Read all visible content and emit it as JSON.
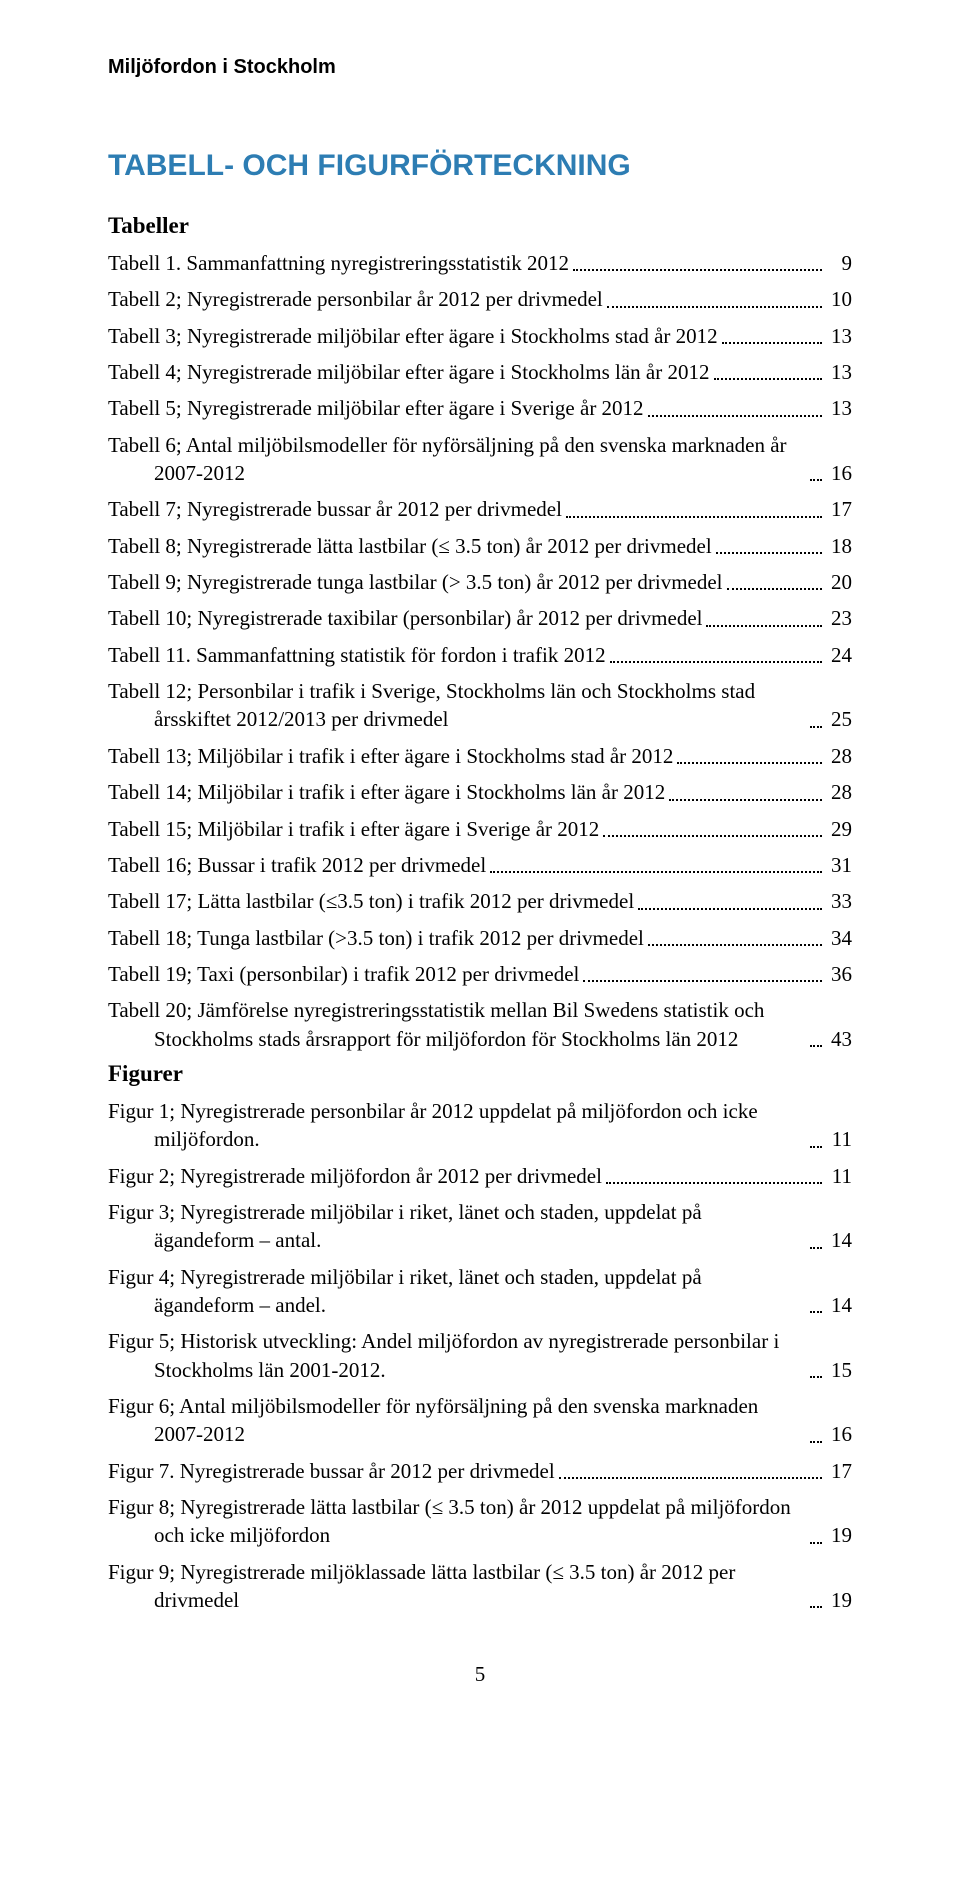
{
  "header": {
    "running_head": "Miljöfordon i Stockholm",
    "section_title": "TABELL- OCH FIGURFÖRTECKNING"
  },
  "tabeller": {
    "heading": "Tabeller",
    "rows": [
      {
        "text": "Tabell 1. Sammanfattning nyregistreringsstatistik 2012",
        "page": "9",
        "indent": false
      },
      {
        "text": "Tabell 2; Nyregistrerade personbilar år 2012 per drivmedel",
        "page": "10",
        "indent": false
      },
      {
        "text": "Tabell 3; Nyregistrerade miljöbilar efter ägare i Stockholms stad år 2012",
        "page": "13",
        "indent": false
      },
      {
        "text": "Tabell 4; Nyregistrerade miljöbilar efter ägare i Stockholms län år 2012",
        "page": "13",
        "indent": false
      },
      {
        "text": "Tabell 5; Nyregistrerade miljöbilar efter ägare i Sverige år 2012",
        "page": "13",
        "indent": false
      },
      {
        "text": "Tabell 6; Antal miljöbilsmodeller för nyförsäljning på den svenska marknaden år 2007-2012",
        "page": "16",
        "indent": true
      },
      {
        "text": "Tabell 7; Nyregistrerade bussar år 2012 per drivmedel",
        "page": "17",
        "indent": false
      },
      {
        "text": "Tabell 8; Nyregistrerade lätta lastbilar (≤ 3.5 ton) år 2012 per drivmedel",
        "page": "18",
        "indent": false
      },
      {
        "text": "Tabell 9; Nyregistrerade tunga lastbilar (> 3.5 ton) år 2012 per drivmedel",
        "page": "20",
        "indent": false
      },
      {
        "text": "Tabell 10; Nyregistrerade taxibilar (personbilar) år 2012 per drivmedel",
        "page": "23",
        "indent": false
      },
      {
        "text": "Tabell 11. Sammanfattning statistik för fordon i trafik 2012",
        "page": "24",
        "indent": false
      },
      {
        "text": "Tabell 12; Personbilar i trafik i Sverige, Stockholms län och Stockholms stad årsskiftet 2012/2013 per drivmedel",
        "page": "25",
        "indent": true
      },
      {
        "text": "Tabell 13; Miljöbilar i trafik i efter ägare i Stockholms stad år 2012",
        "page": "28",
        "indent": false
      },
      {
        "text": "Tabell 14; Miljöbilar i trafik i efter ägare i Stockholms län år 2012",
        "page": "28",
        "indent": false
      },
      {
        "text": "Tabell 15; Miljöbilar i trafik i efter ägare i Sverige år 2012",
        "page": "29",
        "indent": false
      },
      {
        "text": "Tabell 16; Bussar i trafik 2012 per drivmedel",
        "page": "31",
        "indent": false
      },
      {
        "text": "Tabell 17; Lätta lastbilar (≤3.5 ton) i trafik 2012 per drivmedel",
        "page": "33",
        "indent": false
      },
      {
        "text": "Tabell 18; Tunga lastbilar (>3.5 ton) i trafik 2012 per drivmedel",
        "page": "34",
        "indent": false
      },
      {
        "text": "Tabell 19; Taxi (personbilar) i trafik 2012 per drivmedel",
        "page": "36",
        "indent": false
      },
      {
        "text": "Tabell 20; Jämförelse nyregistreringsstatistik mellan Bil Swedens statistik och Stockholms stads årsrapport för miljöfordon för Stockholms län 2012",
        "page": "43",
        "indent": true
      }
    ]
  },
  "figurer": {
    "heading": "Figurer",
    "rows": [
      {
        "text": "Figur 1; Nyregistrerade personbilar år 2012 uppdelat på miljöfordon och icke miljöfordon.",
        "page": "11",
        "indent": true
      },
      {
        "text": "Figur 2; Nyregistrerade miljöfordon år 2012 per drivmedel",
        "page": "11",
        "indent": false
      },
      {
        "text": "Figur 3; Nyregistrerade miljöbilar i riket, länet och staden, uppdelat på ägandeform – antal.",
        "page": "14",
        "indent": true
      },
      {
        "text": "Figur 4; Nyregistrerade miljöbilar i riket, länet och staden, uppdelat på ägandeform – andel.",
        "page": "14",
        "indent": true
      },
      {
        "text": "Figur 5; Historisk utveckling: Andel miljöfordon av nyregistrerade personbilar i Stockholms län 2001-2012.",
        "page": "15",
        "indent": true
      },
      {
        "text": "Figur 6; Antal miljöbilsmodeller för nyförsäljning på den svenska marknaden 2007-2012",
        "page": "16",
        "indent": true
      },
      {
        "text": "Figur 7. Nyregistrerade bussar år 2012 per drivmedel",
        "page": "17",
        "indent": false
      },
      {
        "text": "Figur 8; Nyregistrerade lätta lastbilar (≤ 3.5 ton) år 2012 uppdelat på miljöfordon och icke miljöfordon",
        "page": "19",
        "indent": true
      },
      {
        "text": "Figur 9; Nyregistrerade miljöklassade lätta lastbilar (≤ 3.5 ton) år 2012 per drivmedel",
        "page": "19",
        "indent": true
      }
    ]
  },
  "page_number": "5"
}
